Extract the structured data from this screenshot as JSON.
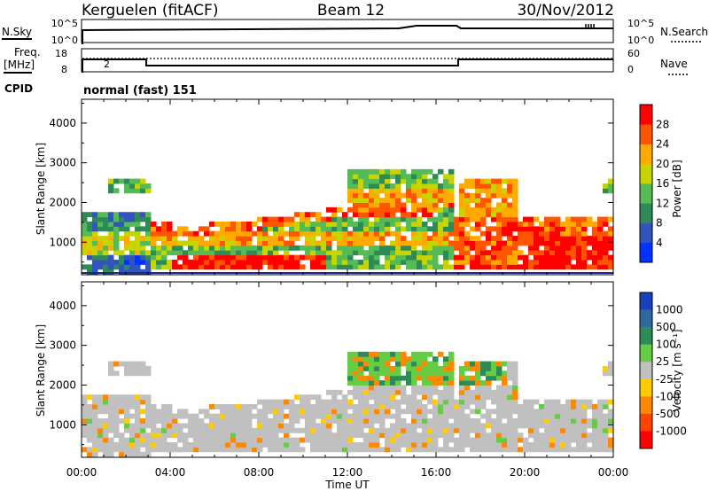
{
  "header": {
    "title_left": "Kerguelen (fitACF)",
    "title_center": "Beam 12",
    "title_right": "30/Nov/2012"
  },
  "strips": {
    "nsky_label": "N.Sky",
    "nsearch_label": "N.Search",
    "freq_label": "Freq.",
    "freq_unit": "[MHz]",
    "nave_label": "Nave",
    "cpid_label": "CPID",
    "cpid_value": "normal (fast) 151",
    "noise_ticks_left": [
      "10^5",
      "10^0"
    ],
    "noise_ticks_right": [
      "10^5",
      "10^0"
    ],
    "freq_ticks": [
      "18",
      "8"
    ],
    "nave_ticks": [
      "60",
      "0"
    ]
  },
  "chart_data": [
    {
      "type": "heatmap",
      "name": "power",
      "ylabel": "Slant Range [km]",
      "ylim": [
        180,
        4600
      ],
      "yticks": [
        1000,
        2000,
        3000,
        4000
      ],
      "xlim": [
        0,
        24
      ],
      "colorbar": {
        "label": "Power [dB]",
        "range": [
          0,
          32
        ],
        "ticks": [
          4,
          8,
          12,
          16,
          20,
          24,
          28
        ],
        "colors": [
          "#0033ff",
          "#3355bb",
          "#2e8b57",
          "#55bb55",
          "#c8d400",
          "#ffaa00",
          "#ff5500",
          "#ff0000"
        ]
      }
    },
    {
      "type": "heatmap",
      "name": "velocity",
      "ylabel": "Slant Range [km]",
      "xlabel": "Time UT",
      "ylim": [
        180,
        4600
      ],
      "yticks": [
        1000,
        2000,
        3000,
        4000
      ],
      "xlim": [
        0,
        24
      ],
      "xticks": [
        "00:00",
        "04:00",
        "08:00",
        "12:00",
        "16:00",
        "20:00",
        "00:00"
      ],
      "colorbar": {
        "label": "Velocity [m s⁻¹]",
        "ticks": [
          "1000",
          "500",
          "100",
          "25",
          "-25",
          "-100",
          "-500",
          "-1000"
        ],
        "colors": [
          "#1a3fbf",
          "#2e6aa0",
          "#2e8b57",
          "#66cc44",
          "#c0c0c0",
          "#ffcc00",
          "#ff8800",
          "#ff4400",
          "#ff0000"
        ]
      }
    }
  ]
}
